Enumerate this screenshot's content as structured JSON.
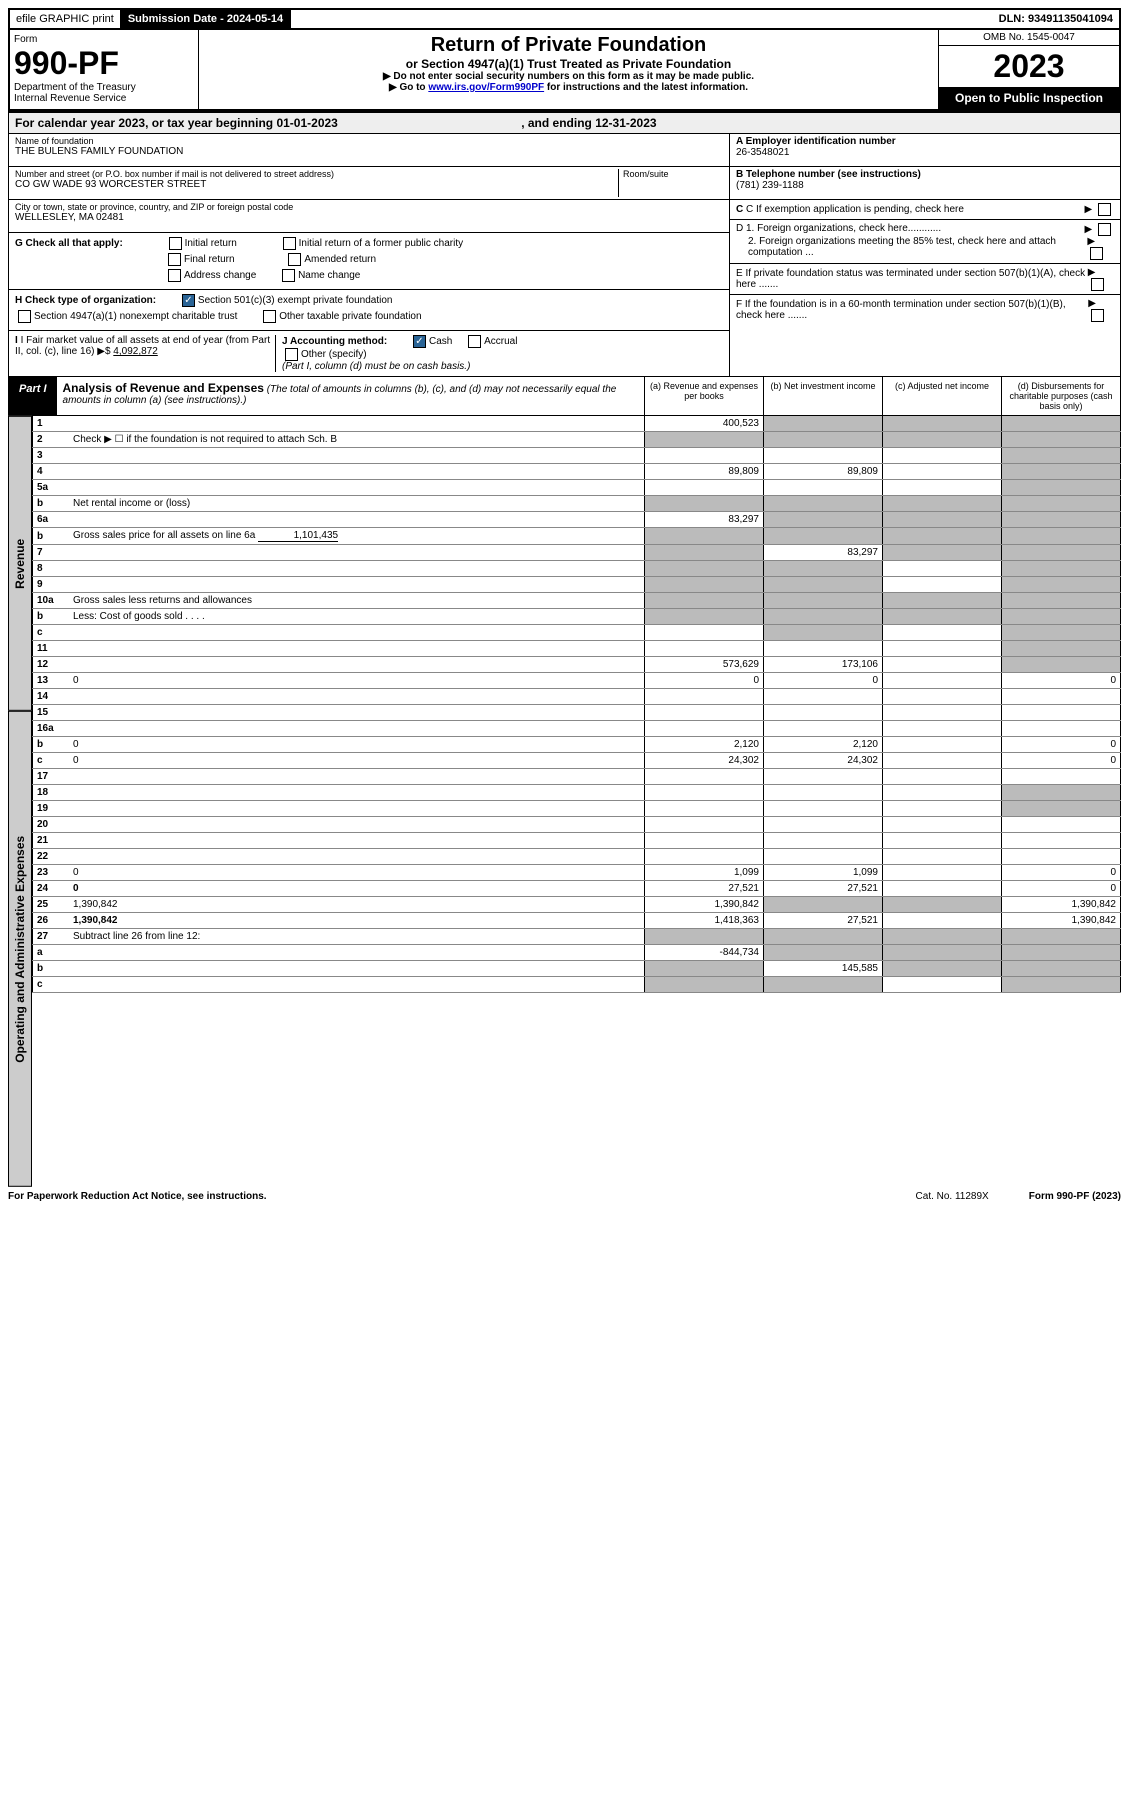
{
  "topbar": {
    "efile": "efile GRAPHIC print",
    "sub_label": "Submission Date - 2024-05-14",
    "dln": "DLN: 93491135041094"
  },
  "header": {
    "form_word": "Form",
    "form_num": "990-PF",
    "dept1": "Department of the Treasury",
    "dept2": "Internal Revenue Service",
    "title": "Return of Private Foundation",
    "subtitle": "or Section 4947(a)(1) Trust Treated as Private Foundation",
    "instr1": "▶ Do not enter social security numbers on this form as it may be made public.",
    "instr2_pre": "▶ Go to ",
    "instr2_link": "www.irs.gov/Form990PF",
    "instr2_post": " for instructions and the latest information.",
    "omb": "OMB No. 1545-0047",
    "year": "2023",
    "open": "Open to Public Inspection"
  },
  "calyear": {
    "text_pre": "For calendar year 2023, or tax year beginning ",
    "begin": "01-01-2023",
    "mid": " , and ending ",
    "end": "12-31-2023"
  },
  "info": {
    "name_label": "Name of foundation",
    "name": "THE BULENS FAMILY FOUNDATION",
    "addr_label": "Number and street (or P.O. box number if mail is not delivered to street address)",
    "addr": "CO GW WADE 93 WORCESTER STREET",
    "room_label": "Room/suite",
    "city_label": "City or town, state or province, country, and ZIP or foreign postal code",
    "city": "WELLESLEY, MA  02481",
    "a_label": "A Employer identification number",
    "ein": "26-3548021",
    "b_label": "B Telephone number (see instructions)",
    "phone": "(781) 239-1188",
    "c_label": "C If exemption application is pending, check here",
    "d1": "D 1. Foreign organizations, check here............",
    "d2": "2. Foreign organizations meeting the 85% test, check here and attach computation ...",
    "e": "E  If private foundation status was terminated under section 507(b)(1)(A), check here .......",
    "f": "F  If the foundation is in a 60-month termination under section 507(b)(1)(B), check here .......",
    "g_label": "G Check all that apply:",
    "g_opts": [
      "Initial return",
      "Final return",
      "Address change",
      "Initial return of a former public charity",
      "Amended return",
      "Name change"
    ],
    "h_label": "H Check type of organization:",
    "h_501": "Section 501(c)(3) exempt private foundation",
    "h_4947": "Section 4947(a)(1) nonexempt charitable trust",
    "h_other": "Other taxable private foundation",
    "i_label": "I Fair market value of all assets at end of year (from Part II, col. (c), line 16)",
    "i_val": "4,092,872",
    "j_label": "J Accounting method:",
    "j_cash": "Cash",
    "j_accrual": "Accrual",
    "j_other": "Other (specify)",
    "j_note": "(Part I, column (d) must be on cash basis.)"
  },
  "part1": {
    "label": "Part I",
    "title": "Analysis of Revenue and Expenses",
    "note": "(The total of amounts in columns (b), (c), and (d) may not necessarily equal the amounts in column (a) (see instructions).)",
    "col_a": "(a) Revenue and expenses per books",
    "col_b": "(b) Net investment income",
    "col_c": "(c) Adjusted net income",
    "col_d": "(d) Disbursements for charitable purposes (cash basis only)"
  },
  "side": {
    "rev": "Revenue",
    "exp": "Operating and Administrative Expenses"
  },
  "rows": [
    {
      "n": "1",
      "d": "",
      "a": "400,523",
      "b": "",
      "c": "",
      "grey": [
        "b",
        "c",
        "d"
      ]
    },
    {
      "n": "2",
      "d": "Check ▶ ☐ if the foundation is not required to attach Sch. B",
      "nocols": true
    },
    {
      "n": "3",
      "d": "",
      "a": "",
      "b": "",
      "c": "",
      "grey": [
        "d"
      ]
    },
    {
      "n": "4",
      "d": "",
      "a": "89,809",
      "b": "89,809",
      "c": "",
      "grey": [
        "d"
      ]
    },
    {
      "n": "5a",
      "d": "",
      "a": "",
      "b": "",
      "c": "",
      "grey": [
        "d"
      ]
    },
    {
      "n": "b",
      "d": "Net rental income or (loss)",
      "nocols": true,
      "boxed": true
    },
    {
      "n": "6a",
      "d": "",
      "a": "83,297",
      "b": "",
      "c": "",
      "grey": [
        "b",
        "c",
        "d"
      ]
    },
    {
      "n": "b",
      "d": "Gross sales price for all assets on line 6a",
      "inline_val": "1,101,435",
      "nocols": true
    },
    {
      "n": "7",
      "d": "",
      "a": "",
      "b": "83,297",
      "c": "",
      "grey": [
        "a",
        "c",
        "d"
      ]
    },
    {
      "n": "8",
      "d": "",
      "a": "",
      "b": "",
      "c": "",
      "grey": [
        "a",
        "b",
        "d"
      ]
    },
    {
      "n": "9",
      "d": "",
      "a": "",
      "b": "",
      "c": "",
      "grey": [
        "a",
        "b",
        "d"
      ]
    },
    {
      "n": "10a",
      "d": "Gross sales less returns and allowances",
      "nocols": true,
      "boxed": true
    },
    {
      "n": "b",
      "d": "Less: Cost of goods sold  .  .  .  .",
      "nocols": true,
      "boxed": true
    },
    {
      "n": "c",
      "d": "",
      "a": "",
      "b": "",
      "c": "",
      "grey": [
        "b",
        "d"
      ]
    },
    {
      "n": "11",
      "d": "",
      "a": "",
      "b": "",
      "c": "",
      "grey": [
        "d"
      ]
    },
    {
      "n": "12",
      "d": "",
      "a": "573,629",
      "b": "173,106",
      "c": "",
      "bold": true,
      "grey": [
        "d"
      ]
    },
    {
      "n": "13",
      "d": "0",
      "a": "0",
      "b": "0",
      "c": ""
    },
    {
      "n": "14",
      "d": "",
      "a": "",
      "b": "",
      "c": ""
    },
    {
      "n": "15",
      "d": "",
      "a": "",
      "b": "",
      "c": ""
    },
    {
      "n": "16a",
      "d": "",
      "a": "",
      "b": "",
      "c": ""
    },
    {
      "n": "b",
      "d": "0",
      "a": "2,120",
      "b": "2,120",
      "c": ""
    },
    {
      "n": "c",
      "d": "0",
      "a": "24,302",
      "b": "24,302",
      "c": ""
    },
    {
      "n": "17",
      "d": "",
      "a": "",
      "b": "",
      "c": ""
    },
    {
      "n": "18",
      "d": "",
      "a": "",
      "b": "",
      "c": "",
      "grey": [
        "d"
      ]
    },
    {
      "n": "19",
      "d": "",
      "a": "",
      "b": "",
      "c": "",
      "grey": [
        "d"
      ]
    },
    {
      "n": "20",
      "d": "",
      "a": "",
      "b": "",
      "c": ""
    },
    {
      "n": "21",
      "d": "",
      "a": "",
      "b": "",
      "c": ""
    },
    {
      "n": "22",
      "d": "",
      "a": "",
      "b": "",
      "c": ""
    },
    {
      "n": "23",
      "d": "0",
      "a": "1,099",
      "b": "1,099",
      "c": ""
    },
    {
      "n": "24",
      "d": "0",
      "a": "27,521",
      "b": "27,521",
      "c": "",
      "bold": true
    },
    {
      "n": "25",
      "d": "1,390,842",
      "a": "1,390,842",
      "b": "",
      "c": "",
      "grey": [
        "b",
        "c"
      ]
    },
    {
      "n": "26",
      "d": "1,390,842",
      "a": "1,418,363",
      "b": "27,521",
      "c": "",
      "bold": true
    },
    {
      "n": "27",
      "d": "Subtract line 26 from line 12:",
      "nocols": true,
      "grey_all": true
    },
    {
      "n": "a",
      "d": "",
      "a": "-844,734",
      "b": "",
      "c": "",
      "bold": true,
      "grey": [
        "b",
        "c",
        "d"
      ]
    },
    {
      "n": "b",
      "d": "",
      "a": "",
      "b": "145,585",
      "c": "",
      "bold": true,
      "grey": [
        "a",
        "c",
        "d"
      ]
    },
    {
      "n": "c",
      "d": "",
      "a": "",
      "b": "",
      "c": "",
      "bold": true,
      "grey": [
        "a",
        "b",
        "d"
      ]
    }
  ],
  "footer": {
    "left": "For Paperwork Reduction Act Notice, see instructions.",
    "mid": "Cat. No. 11289X",
    "right": "Form 990-PF (2023)"
  }
}
